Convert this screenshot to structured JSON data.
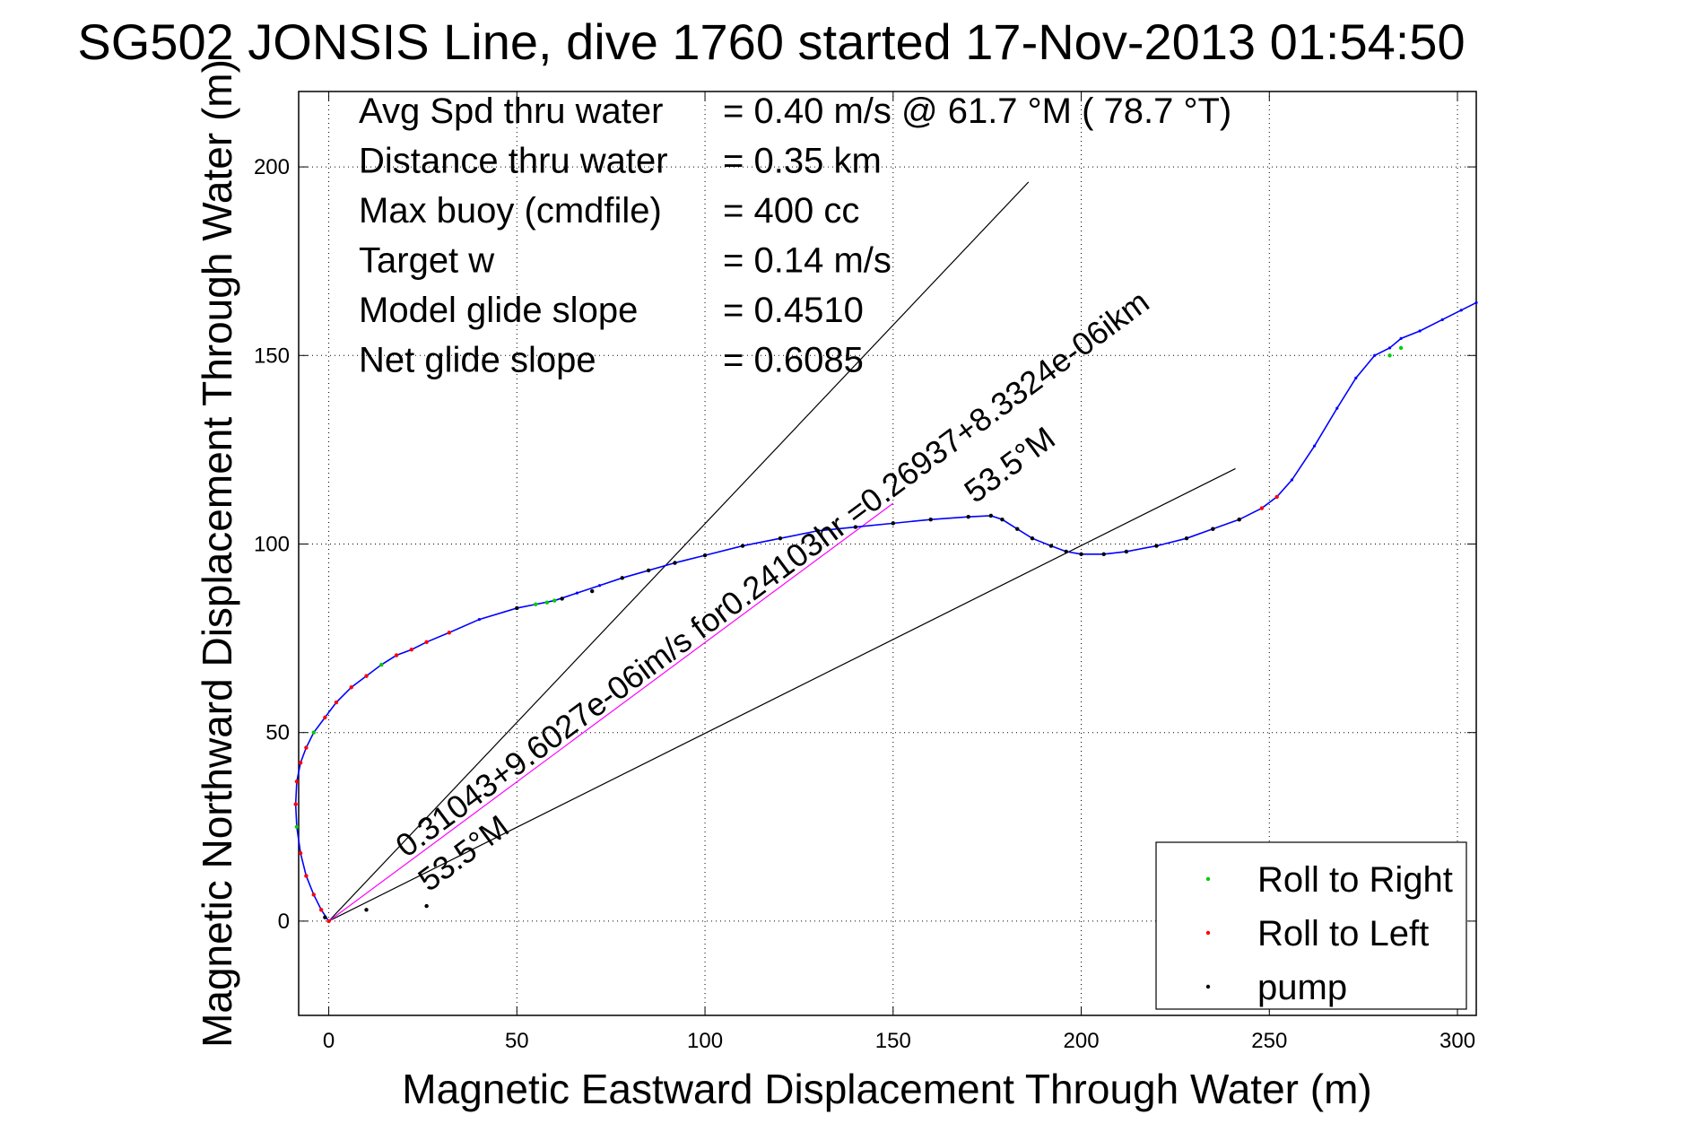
{
  "chart_data": {
    "type": "line",
    "title": "SG502 JONSIS Line, dive 1760 started 17-Nov-2013 01:54:50",
    "xlabel": "Magnetic Eastward Displacement Through Water (m)",
    "ylabel": "Magnetic Northward Displacement Through Water (m)",
    "xlim": [
      -8,
      305
    ],
    "ylim": [
      -25,
      220
    ],
    "xticks": [
      0,
      50,
      100,
      150,
      200,
      250,
      300
    ],
    "yticks": [
      0,
      50,
      100,
      150,
      200
    ],
    "grid": true,
    "legend_position": "bottom-right",
    "colors": {
      "track": "#0000ff",
      "roll_right": "#00cc00",
      "roll_left": "#ff0000",
      "pump": "#000000",
      "bearing": "#ff00ff",
      "guide": "#000000"
    },
    "stats": [
      {
        "label": "Avg Spd thru water",
        "value": "=  0.40 m/s @  61.7 °M ( 78.7 °T)"
      },
      {
        "label": "Distance thru water",
        "value": "=  0.35 km"
      },
      {
        "label": "Max buoy (cmdfile)",
        "value": "= 400 cc"
      },
      {
        "label": "Target w",
        "value": "= 0.14 m/s"
      },
      {
        "label": "Model glide slope",
        "value": "= 0.4510"
      },
      {
        "label": "Net glide slope",
        "value": "= 0.6085"
      }
    ],
    "annotations": [
      {
        "line1": "0.31043+9.6027e-06im/s for0.24103hr =0.26937+8.3324e-06ikm",
        "line2": "53.5°M"
      },
      {
        "line1": "53.5°M"
      }
    ],
    "series": [
      {
        "name": "track",
        "x": [
          0,
          -2,
          -4,
          -6,
          -7.5,
          -8.5,
          -8.8,
          -8.5,
          -7.5,
          -6,
          -4,
          -1,
          2,
          6,
          10,
          14,
          18,
          22,
          26,
          32,
          40,
          50,
          55,
          60,
          66,
          72,
          78,
          85,
          92,
          100,
          110,
          120,
          130,
          140,
          150,
          160,
          170,
          176,
          179,
          183,
          187,
          192,
          196,
          200,
          206,
          212,
          220,
          228,
          235,
          242,
          248,
          252,
          256,
          262,
          268,
          273,
          278,
          282,
          285,
          290,
          296,
          301,
          305
        ],
        "y": [
          0,
          3,
          7,
          12,
          18,
          25,
          31,
          37,
          42,
          46,
          50,
          54,
          58,
          62,
          65,
          68,
          70.5,
          72,
          74,
          76.5,
          80,
          83,
          84,
          85,
          87,
          89,
          91,
          93,
          95,
          97,
          99.5,
          101.5,
          103.5,
          104.5,
          105.5,
          106.5,
          107.2,
          107.5,
          106.5,
          104,
          101.5,
          99.5,
          98,
          97.3,
          97.3,
          98,
          99.5,
          101.5,
          104,
          106.5,
          109.5,
          112.5,
          117,
          126,
          136,
          144,
          150,
          152,
          154.5,
          156.5,
          159.5,
          162,
          164
        ]
      },
      {
        "name": "Roll to Right",
        "x": [
          -8.5,
          -4,
          14,
          55,
          58,
          60,
          150,
          176,
          282,
          285
        ],
        "y": [
          25,
          50,
          68,
          84,
          84.5,
          85,
          105.5,
          107.5,
          150,
          152
        ]
      },
      {
        "name": "Roll to Left",
        "x": [
          0,
          -2,
          -4,
          -6,
          -7.5,
          -8.8,
          -8.5,
          -7.5,
          -6,
          -1,
          2,
          6,
          10,
          18,
          22,
          26,
          32,
          235,
          242,
          248,
          252
        ],
        "y": [
          0,
          3,
          7,
          12,
          18,
          31,
          37,
          42,
          46,
          54,
          58,
          62,
          65,
          70.5,
          72,
          74,
          76.5,
          104,
          106.5,
          109.5,
          112.5
        ]
      },
      {
        "name": "pump",
        "x": [
          -1,
          10,
          26,
          50,
          62,
          70,
          78,
          85,
          92,
          100,
          110,
          120,
          130,
          140,
          150,
          160,
          170,
          176,
          179,
          183,
          187,
          192,
          196,
          200,
          206,
          212,
          220,
          228,
          235,
          242
        ],
        "y": [
          1,
          3,
          4,
          83,
          85.5,
          87.5,
          91,
          93,
          95,
          97,
          99.5,
          101.5,
          103.5,
          104.5,
          105.5,
          106.5,
          107.2,
          107.5,
          106.5,
          104,
          101.5,
          99.5,
          98,
          97.3,
          97.3,
          98,
          99.5,
          101.5,
          104,
          106.5
        ]
      }
    ]
  }
}
